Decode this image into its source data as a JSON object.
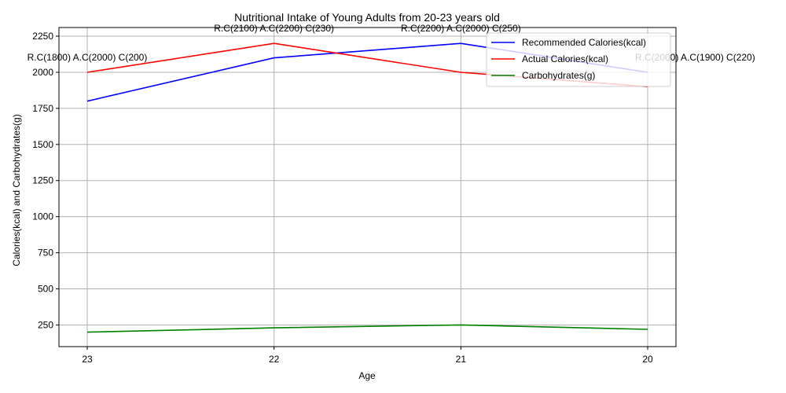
{
  "chart_data": {
    "type": "line",
    "title": "Nutritional Intake of Young Adults from 20-23 years old",
    "xlabel": "Age",
    "ylabel": "Calories(kcal) and Carbohydrates(g)",
    "categories": [
      "23",
      "22",
      "21",
      "20"
    ],
    "ylim": [
      100,
      2310
    ],
    "yticks": [
      250,
      500,
      750,
      1000,
      1250,
      1500,
      1750,
      2000,
      2250
    ],
    "grid": true,
    "legend_position": "top-right",
    "series": [
      {
        "name": "Recommended Calories(kcal)",
        "values": [
          1800,
          2100,
          2200,
          2000
        ],
        "color": "#0000ff"
      },
      {
        "name": "Actual Calories(kcal)",
        "values": [
          2000,
          2200,
          2000,
          1900
        ],
        "color": "#ff0000"
      },
      {
        "name": "Carbohydrates(g)",
        "values": [
          200,
          230,
          250,
          220
        ],
        "color": "#008000"
      }
    ],
    "annotations": [
      "R.C(1800) A.C(2000) C(200)",
      "R.C(2100) A.C(2200) C(230)",
      "R.C(2200) A.C(2000) C(250)",
      "R.C(2000) A.C(1900) C(220)"
    ]
  }
}
